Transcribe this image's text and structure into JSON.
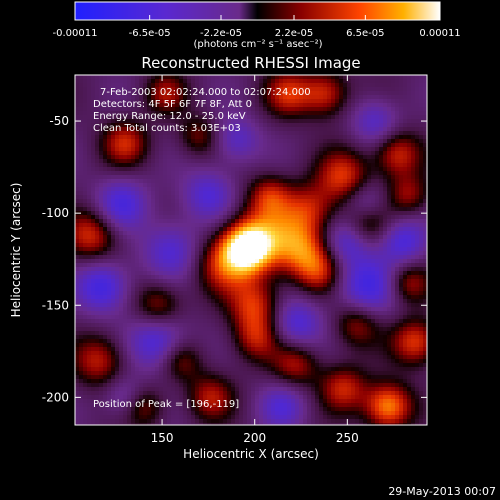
{
  "colorbar": {
    "tick_labels": [
      "-0.00011",
      "-6.5e-05",
      "-2.2e-05",
      "2.2e-05",
      "6.5e-05",
      "0.00011"
    ],
    "unit_label": "(photons cm⁻² s⁻¹ asec⁻²)",
    "range": [
      -0.00011,
      0.00011
    ]
  },
  "chart_data": {
    "type": "heatmap",
    "title": "Reconstructed RHESSI Image",
    "xlabel": "Heliocentric X (arcsec)",
    "ylabel": "Heliocentric Y (arcsec)",
    "xlim": [
      103,
      293
    ],
    "ylim": [
      -215,
      -25
    ],
    "x_ticks": [
      "150",
      "200",
      "250"
    ],
    "y_ticks": [
      "-50",
      "-100",
      "-150",
      "-200"
    ],
    "annotations": [
      "7-Feb-2003 02:02:24.000 to 02:07:24.000",
      "Detectors: 4F 5F 6F 7F 8F, Att 0",
      "Energy Range: 12.0 - 25.0 keV",
      "Clean    Total counts: 3.03E+03"
    ],
    "peak_label": "Position of Peak = [196,-119]",
    "peak_position": [
      196,
      -119
    ],
    "blobs": [
      {
        "x": 196,
        "y": -119,
        "v": 1.0,
        "r": 9
      },
      {
        "x": 208,
        "y": -112,
        "v": 0.55,
        "r": 14
      },
      {
        "x": 183,
        "y": -128,
        "v": 0.5,
        "r": 11
      },
      {
        "x": 200,
        "y": -150,
        "v": 0.55,
        "r": 10
      },
      {
        "x": 201,
        "y": -168,
        "v": 0.45,
        "r": 9
      },
      {
        "x": 226,
        "y": -120,
        "v": 0.5,
        "r": 10
      },
      {
        "x": 235,
        "y": -132,
        "v": 0.45,
        "r": 9
      },
      {
        "x": 230,
        "y": -98,
        "v": 0.45,
        "r": 10
      },
      {
        "x": 208,
        "y": -90,
        "v": 0.4,
        "r": 8
      },
      {
        "x": 248,
        "y": -80,
        "v": 0.55,
        "r": 10
      },
      {
        "x": 260,
        "y": -105,
        "v": 0.45,
        "r": 9
      },
      {
        "x": 277,
        "y": -68,
        "v": 0.55,
        "r": 9
      },
      {
        "x": 283,
        "y": -90,
        "v": 0.4,
        "r": 8
      },
      {
        "x": 218,
        "y": -35,
        "v": 0.5,
        "r": 9
      },
      {
        "x": 238,
        "y": -35,
        "v": 0.55,
        "r": 9
      },
      {
        "x": 152,
        "y": -35,
        "v": 0.4,
        "r": 8
      },
      {
        "x": 130,
        "y": -62,
        "v": 0.5,
        "r": 9
      },
      {
        "x": 112,
        "y": -112,
        "v": 0.55,
        "r": 10
      },
      {
        "x": 116,
        "y": -180,
        "v": 0.5,
        "r": 10
      },
      {
        "x": 148,
        "y": -150,
        "v": 0.45,
        "r": 9
      },
      {
        "x": 160,
        "y": -180,
        "v": 0.4,
        "r": 8
      },
      {
        "x": 255,
        "y": -160,
        "v": 0.45,
        "r": 9
      },
      {
        "x": 287,
        "y": -170,
        "v": 0.6,
        "r": 9
      },
      {
        "x": 283,
        "y": -138,
        "v": 0.45,
        "r": 8
      },
      {
        "x": 272,
        "y": -205,
        "v": 0.8,
        "r": 9
      },
      {
        "x": 248,
        "y": -195,
        "v": 0.5,
        "r": 9
      },
      {
        "x": 222,
        "y": -182,
        "v": 0.45,
        "r": 9
      },
      {
        "x": 176,
        "y": -200,
        "v": 0.45,
        "r": 9
      },
      {
        "x": 140,
        "y": -205,
        "v": 0.4,
        "r": 8
      },
      {
        "x": 170,
        "y": -58,
        "v": 0.35,
        "r": 8
      },
      {
        "x": 148,
        "y": -170,
        "v": -0.55,
        "r": 11
      },
      {
        "x": 128,
        "y": -95,
        "v": -0.5,
        "r": 10
      },
      {
        "x": 118,
        "y": -140,
        "v": -0.6,
        "r": 10
      },
      {
        "x": 155,
        "y": -120,
        "v": -0.45,
        "r": 11
      },
      {
        "x": 260,
        "y": -140,
        "v": -0.55,
        "r": 12
      },
      {
        "x": 250,
        "y": -115,
        "v": -0.45,
        "r": 9
      },
      {
        "x": 280,
        "y": -115,
        "v": -0.5,
        "r": 9
      },
      {
        "x": 222,
        "y": -160,
        "v": -0.5,
        "r": 10
      },
      {
        "x": 260,
        "y": -95,
        "v": -0.4,
        "r": 8
      },
      {
        "x": 175,
        "y": -90,
        "v": -0.45,
        "r": 10
      },
      {
        "x": 190,
        "y": -60,
        "v": -0.4,
        "r": 9
      },
      {
        "x": 265,
        "y": -50,
        "v": -0.4,
        "r": 9
      },
      {
        "x": 130,
        "y": -200,
        "v": -0.35,
        "r": 8
      },
      {
        "x": 215,
        "y": -205,
        "v": -0.4,
        "r": 9
      }
    ]
  },
  "footer": {
    "date": "29-May-2013 00:07"
  }
}
